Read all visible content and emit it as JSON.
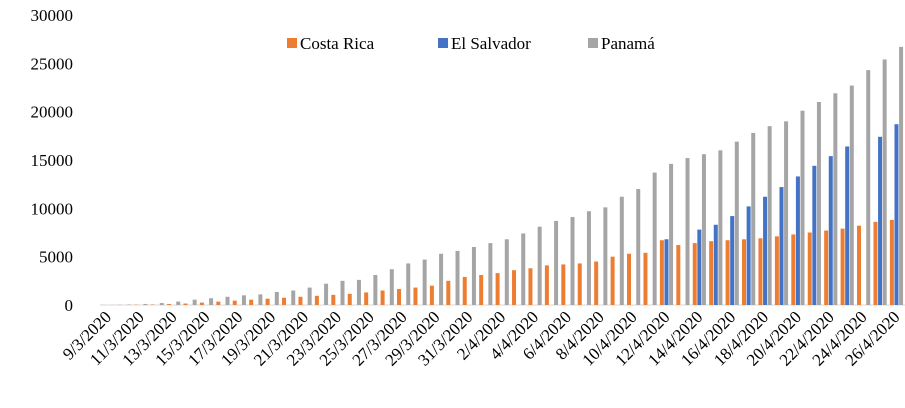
{
  "chart_data": {
    "type": "bar",
    "categories": [
      "9/3/2020",
      null,
      "11/3/2020",
      null,
      "13/3/2020",
      null,
      "15/3/2020",
      null,
      "17/3/2020",
      null,
      "19/3/2020",
      null,
      "21/3/2020",
      null,
      "23/3/2020",
      null,
      "25/3/2020",
      null,
      "27/3/2020",
      null,
      "29/3/2020",
      null,
      "31/3/2020",
      null,
      "2/4/2020",
      null,
      "4/4/2020",
      null,
      "6/4/2020",
      null,
      "8/4/2020",
      null,
      "10/4/2020",
      null,
      "12/4/2020",
      null,
      "14/4/2020",
      null,
      "16/4/2020",
      null,
      "18/4/2020",
      null,
      "20/4/2020",
      null,
      "22/4/2020",
      null,
      "24/4/2020",
      null,
      "26/4/2020"
    ],
    "series": [
      {
        "name": "Costa Rica",
        "color": "#ed7d31",
        "values": [
          10,
          20,
          30,
          50,
          100,
          150,
          250,
          350,
          450,
          550,
          650,
          750,
          850,
          950,
          1050,
          1150,
          1300,
          1500,
          1650,
          1800,
          2000,
          2500,
          2900,
          3100,
          3300,
          3600,
          3800,
          4100,
          4200,
          4300,
          4500,
          5000,
          5300,
          5400,
          6700,
          6200,
          6400,
          6600,
          6700,
          6800,
          6900,
          7100,
          7300,
          7500,
          7700,
          7900,
          8200,
          8600,
          8800
        ]
      },
      {
        "name": "El Salvador",
        "color": "#4472c4",
        "values": [
          null,
          null,
          null,
          null,
          null,
          null,
          null,
          null,
          null,
          null,
          null,
          null,
          null,
          null,
          null,
          null,
          null,
          null,
          null,
          null,
          null,
          null,
          null,
          null,
          null,
          null,
          null,
          null,
          null,
          null,
          null,
          null,
          null,
          null,
          6800,
          null,
          7800,
          8300,
          9200,
          10200,
          11200,
          12200,
          13300,
          14400,
          15400,
          16400,
          null,
          17400,
          18700
        ]
      },
      {
        "name": "Panamá",
        "color": "#a5a5a5",
        "values": [
          10,
          50,
          110,
          200,
          350,
          550,
          700,
          850,
          1000,
          1100,
          1350,
          1500,
          1800,
          2200,
          2500,
          2600,
          3100,
          3700,
          4300,
          4700,
          5300,
          5600,
          6000,
          6400,
          6800,
          7400,
          8100,
          8700,
          9100,
          9700,
          10100,
          11200,
          12000,
          13700,
          14600,
          15200,
          15600,
          16000,
          16900,
          17800,
          18500,
          19000,
          20100,
          21000,
          21900,
          22700,
          24300,
          25400,
          26700
        ]
      }
    ],
    "ylim": [
      0,
      30000
    ],
    "yticks": [
      0,
      5000,
      10000,
      15000,
      20000,
      25000,
      30000
    ],
    "grid": false,
    "legend": "top"
  }
}
